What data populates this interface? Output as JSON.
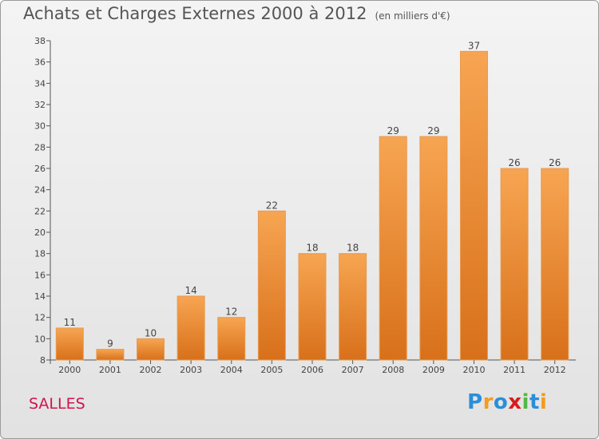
{
  "title": "Achats et Charges Externes 2000 à 2012",
  "subtitle": "(en milliers d'€)",
  "commune": "SALLES",
  "logo": {
    "text": "Proxiti",
    "colors": [
      "#2a8fd8",
      "#f29b1d",
      "#2a8fd8",
      "#d81b1b",
      "#52b848",
      "#2a8fd8",
      "#f29b1d"
    ]
  },
  "chart_data": {
    "type": "bar",
    "categories": [
      "2000",
      "2001",
      "2002",
      "2003",
      "2004",
      "2005",
      "2006",
      "2007",
      "2008",
      "2009",
      "2010",
      "2011",
      "2012"
    ],
    "values": [
      11,
      9,
      10,
      14,
      12,
      22,
      18,
      18,
      29,
      29,
      37,
      26,
      26
    ],
    "title": "Achats et Charges Externes 2000 à 2012",
    "xlabel": "",
    "ylabel": "",
    "ylim": [
      8,
      38
    ],
    "yticks": [
      8,
      10,
      12,
      14,
      16,
      18,
      20,
      22,
      24,
      26,
      28,
      30,
      32,
      34,
      36,
      38
    ],
    "grid": false,
    "legend": "none",
    "bar_color": "#f0902e"
  }
}
